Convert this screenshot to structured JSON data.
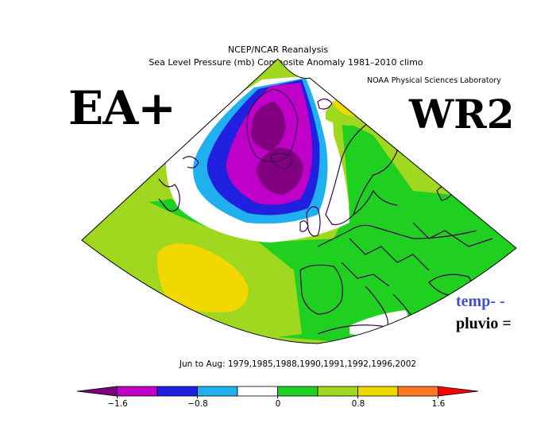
{
  "header": {
    "title_line1": "NCEP/NCAR Reanalysis",
    "title_line2": "Sea Level Pressure (mb) Composite Anomaly 1981–2010 climo",
    "credit": "NOAA Physical Sciences Laboratory"
  },
  "annotations": {
    "left_label": "EA+",
    "right_label": "WR2",
    "temp_label": "temp- -",
    "pluvio_label": "pluvio ="
  },
  "footer": {
    "period": "Jun to Aug: 1979,1985,1988,1990,1991,1992,1996,2002"
  },
  "colorbar": {
    "colors": [
      "#800080",
      "#c000c8",
      "#2020e0",
      "#20b0f0",
      "#ffffff",
      "#20d020",
      "#a0d820",
      "#f0d800",
      "#ff7820",
      "#ff0000"
    ],
    "tick_labels": [
      "−1.6",
      "−0.8",
      "0",
      "0.8",
      "1.6"
    ]
  },
  "map_colors": {
    "light_green": "#a0d820",
    "green": "#20d020",
    "white": "#ffffff",
    "cyan": "#20b0f0",
    "blue": "#2020e0",
    "magenta": "#c000c8",
    "purple": "#800080",
    "yellow": "#f0d800",
    "coastline": "#3a0050"
  }
}
